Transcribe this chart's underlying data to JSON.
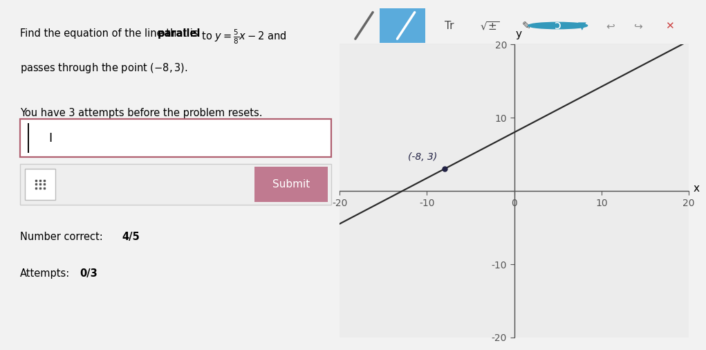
{
  "fig_width": 9.86,
  "fig_height": 4.78,
  "left_bg": "#f2f2f2",
  "right_toolbar_bg": "#ffffff",
  "graph_bg": "#ececec",
  "line_color": "#2a2a2a",
  "point_color": "#222244",
  "point_x": -8,
  "point_y": 3,
  "point_label": "(-8, 3)",
  "slope": 0.625,
  "y_intercept": 8,
  "x_min": -20,
  "x_max": 20,
  "y_min": -20,
  "y_max": 20,
  "x_ticks": [
    -20,
    -10,
    0,
    10,
    20
  ],
  "y_ticks": [
    -20,
    -10,
    0,
    10,
    20
  ],
  "submit_btn_color": "#c07a90",
  "submit_text": "Submit",
  "active_tool_bg": "#5aabdc",
  "toolbar_border": "#dddddd",
  "input_border": "#b06070",
  "number_correct_bold": "4/5",
  "attempts_bold": "0/3",
  "axis_color": "#555555",
  "tick_color": "#555555"
}
